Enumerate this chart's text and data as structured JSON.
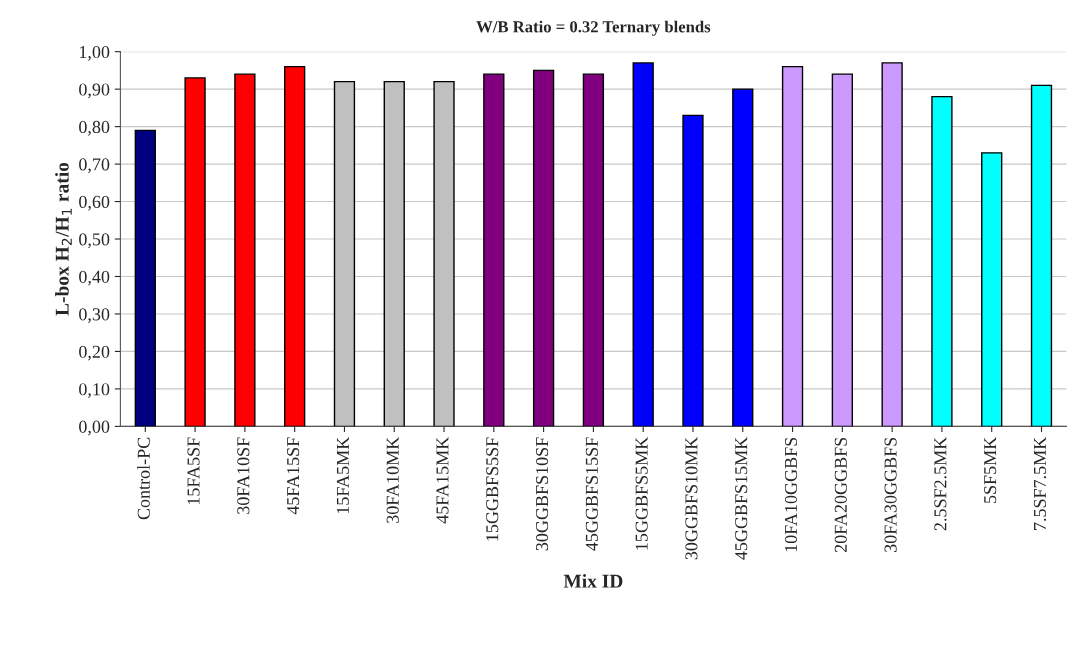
{
  "chart_data": {
    "type": "bar",
    "title": "W/B Ratio = 0.32 Ternary blends",
    "xlabel": "Mix ID",
    "ylabel": "L-box H$_{2}$/H$_{1}$ ratio",
    "categories": [
      "Control-PC",
      "15FA5SF",
      "30FA10SF",
      "45FA15SF",
      "15FA5MK",
      "30FA10MK",
      "45FA15MK",
      "15GGBFS5SF",
      "30GGBFS10SF",
      "45GGBFS15SF",
      "15GGBFS5MK",
      "30GGBFS10MK",
      "45GGBFS15MK",
      "10FA10GGBFS",
      "20FA20GGBFS",
      "30FA30GGBFS",
      "2.5SF2.5MK",
      "5SF5MK",
      "7.5SF7.5MK"
    ],
    "values": [
      0.79,
      0.93,
      0.94,
      0.96,
      0.92,
      0.92,
      0.92,
      0.94,
      0.95,
      0.94,
      0.97,
      0.83,
      0.9,
      0.96,
      0.94,
      0.97,
      0.88,
      0.73,
      0.91
    ],
    "colors": [
      "#000080",
      "#ff0000",
      "#ff0000",
      "#ff0000",
      "#c0c0c0",
      "#c0c0c0",
      "#c0c0c0",
      "#800080",
      "#800080",
      "#800080",
      "#0000ff",
      "#0000ff",
      "#0000ff",
      "#cc99ff",
      "#cc99ff",
      "#cc99ff",
      "#00ffff",
      "#00ffff",
      "#00ffff"
    ],
    "ylim": [
      0,
      1
    ],
    "yticks": [
      {
        "value": 0,
        "label": "0,00"
      },
      {
        "value": 0.1,
        "label": "0,10"
      },
      {
        "value": 0.2,
        "label": "0,20"
      },
      {
        "value": 0.3,
        "label": "0,30"
      },
      {
        "value": 0.4,
        "label": "0,40"
      },
      {
        "value": 0.5,
        "label": "0,50"
      },
      {
        "value": 0.6,
        "label": "0,60"
      },
      {
        "value": 0.7,
        "label": "0,70"
      },
      {
        "value": 0.8,
        "label": "0,80"
      },
      {
        "value": 0.9,
        "label": "0,90"
      },
      {
        "value": 1,
        "label": "1,00"
      }
    ],
    "grid": "y",
    "legend": false
  }
}
